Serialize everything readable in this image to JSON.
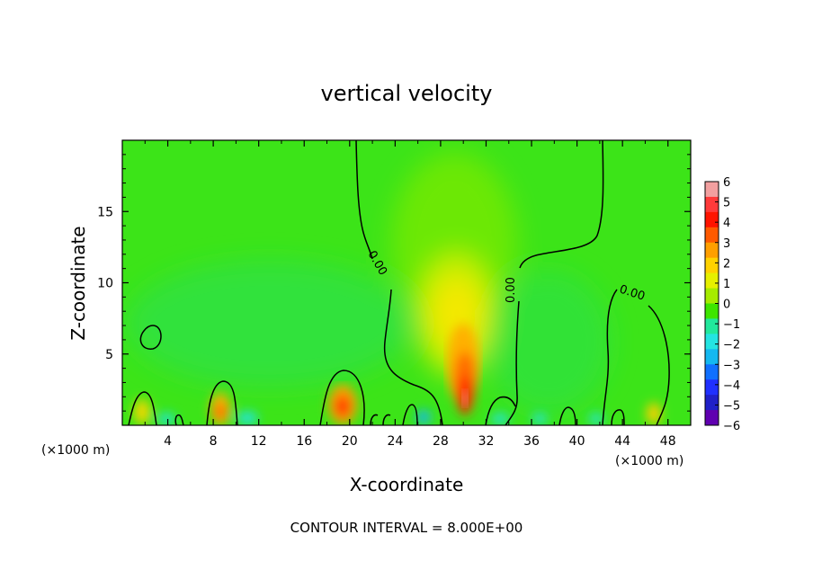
{
  "chart_data": {
    "type": "heatmap",
    "title": "vertical velocity",
    "xlabel": "X-coordinate",
    "ylabel": "Z-coordinate",
    "x_unit": "(×1000 m)",
    "x_unit_right": "(×1000 m)",
    "xlim": [
      0,
      50
    ],
    "ylim": [
      0,
      20
    ],
    "x_ticks": [
      4,
      8,
      12,
      16,
      20,
      24,
      28,
      32,
      36,
      40,
      44,
      48
    ],
    "y_ticks": [
      5,
      10,
      15
    ],
    "colorbar": {
      "ticks": [
        6,
        5,
        4,
        3,
        2,
        1,
        0,
        -1,
        -2,
        -3,
        -4,
        -5,
        -6
      ],
      "colors": [
        "#f2a0a0",
        "#ff3a3a",
        "#ff1400",
        "#ff5a00",
        "#ff9f00",
        "#ffd200",
        "#e6f000",
        "#a6ec00",
        "#3ee600",
        "#22e89c",
        "#24e4e2",
        "#14b8f0",
        "#1070ff",
        "#2030ff",
        "#2020c8",
        "#6000b0"
      ]
    },
    "contour_interval": "CONTOUR INTERVAL = 8.000E+00",
    "contour_labels": [
      "0.00",
      "0.00",
      "0.00"
    ],
    "features": [
      {
        "x": 2.0,
        "z": 1.0,
        "w": 2.0
      },
      {
        "x": 8.8,
        "z": 1.2,
        "w": 2.4
      },
      {
        "x": 19.5,
        "z": 1.5,
        "w": 3.6
      },
      {
        "x": 30.2,
        "z": 2.0,
        "w": 6.0
      },
      {
        "x": 30.0,
        "z": 7.0,
        "w": 1.6
      },
      {
        "x": 46.8,
        "z": 0.8,
        "w": 1.8
      },
      {
        "x": 11.0,
        "z": 0.4,
        "w": -1.8
      },
      {
        "x": 26.5,
        "z": 0.4,
        "w": -2.0
      }
    ]
  }
}
